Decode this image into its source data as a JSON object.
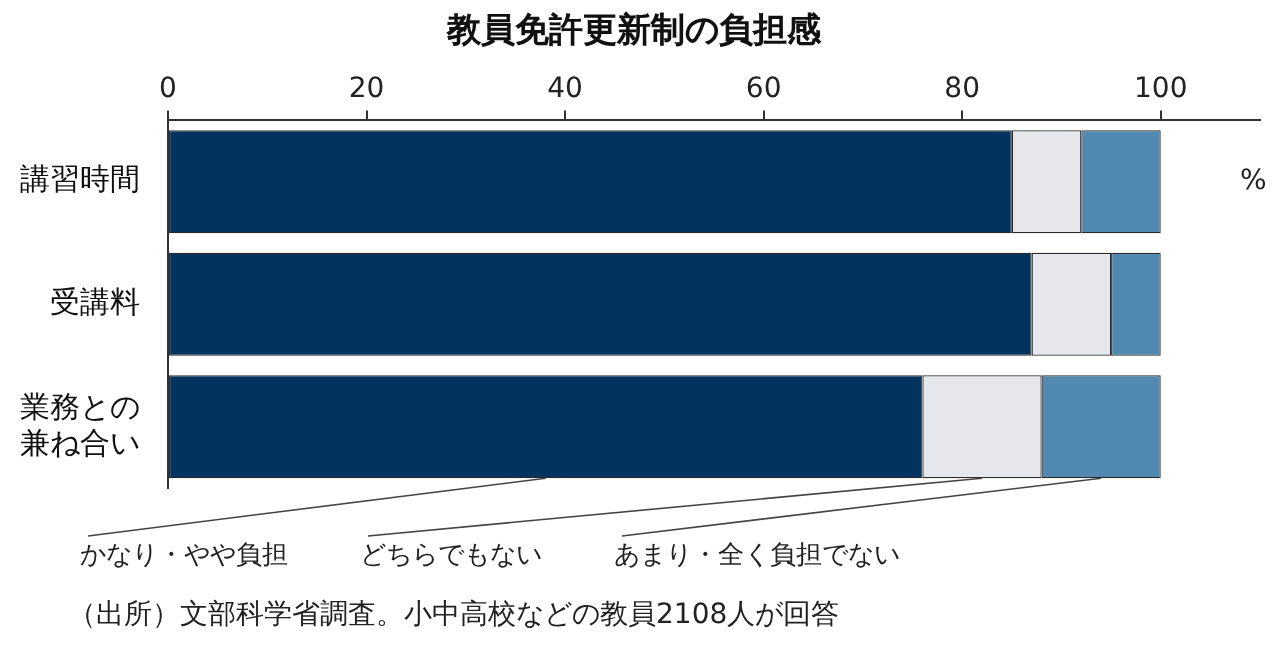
{
  "chart_data": {
    "type": "bar",
    "title": "教員免許更新制の負担感",
    "orientation": "horizontal",
    "stacked": true,
    "categories": [
      "講習時間",
      "受講料",
      "業務との兼ね合い"
    ],
    "series": [
      {
        "name": "かなり・やや負担",
        "color": "#02335f",
        "values": [
          85,
          87,
          76
        ]
      },
      {
        "name": "どちらでもない",
        "color": "#e6e7ec",
        "values": [
          7,
          8,
          12
        ]
      },
      {
        "name": "あまり・全く負担でない",
        "color": "#5289b0",
        "values": [
          8,
          5,
          12
        ]
      }
    ],
    "xlim": [
      0,
      110
    ],
    "xticks": [
      0,
      20,
      40,
      60,
      80,
      100
    ],
    "xlabel": "%",
    "annotations": [
      "（出所）文部科学省調査。小中高校などの教員2108人が回答"
    ]
  }
}
